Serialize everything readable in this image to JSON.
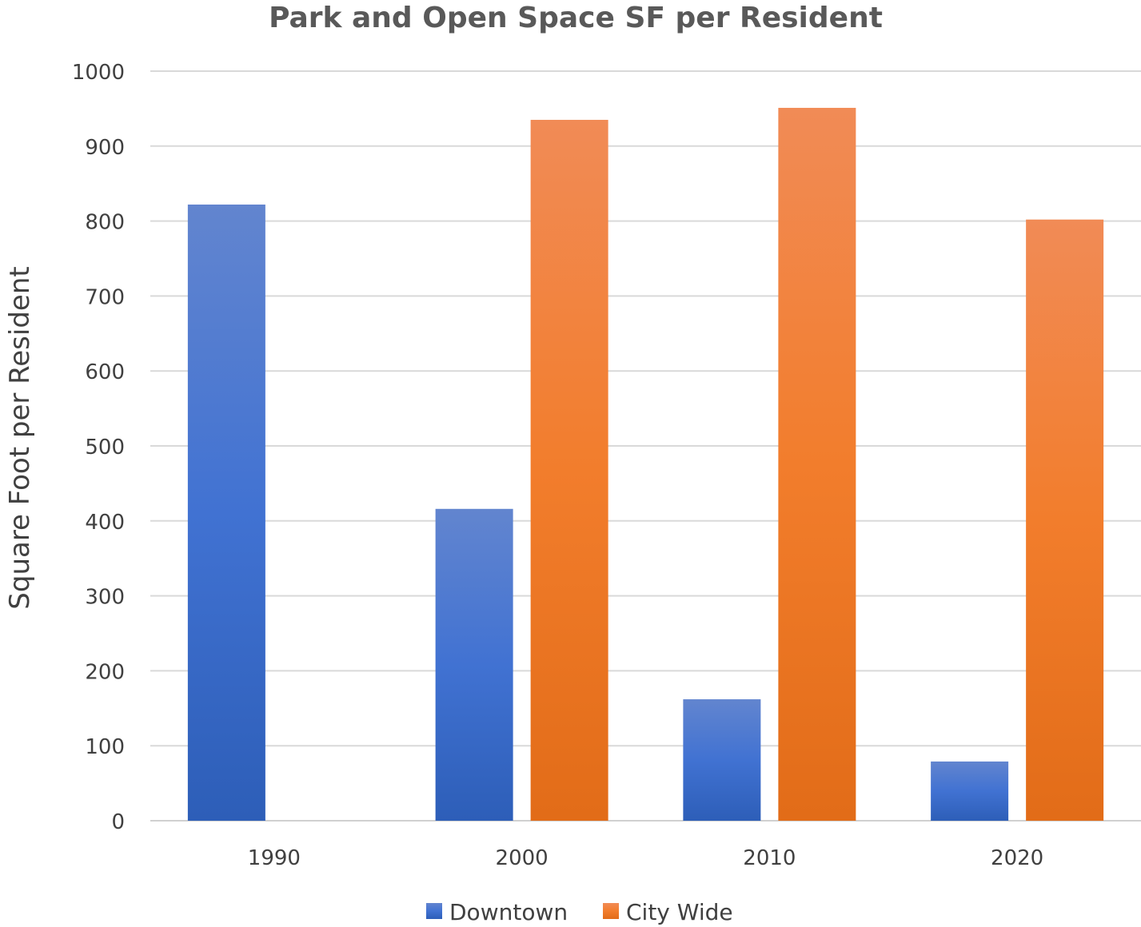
{
  "chart_data": {
    "type": "bar",
    "title": "Park and Open Space SF per Resident",
    "xlabel": "",
    "ylabel": "Square Foot per Resident",
    "categories": [
      "1990",
      "2000",
      "2010",
      "2020"
    ],
    "series": [
      {
        "name": "Downtown",
        "values": [
          822,
          416,
          162,
          79
        ],
        "color": "#4472C4"
      },
      {
        "name": "City Wide",
        "values": [
          null,
          935,
          951,
          802
        ],
        "color": "#ED7D31"
      }
    ],
    "ylim": [
      0,
      1000
    ],
    "yticks": [
      0,
      100,
      200,
      300,
      400,
      500,
      600,
      700,
      800,
      900,
      1000
    ],
    "grid": true,
    "legend": "bottom"
  }
}
